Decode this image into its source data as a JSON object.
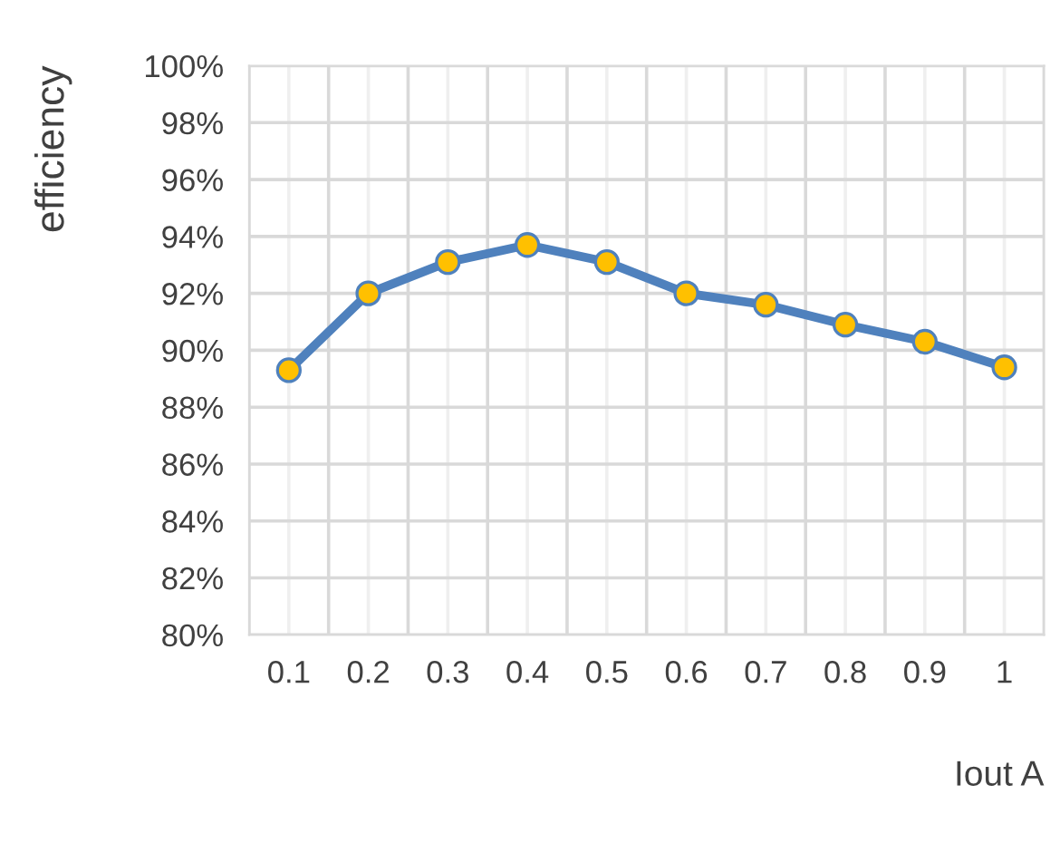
{
  "chart_data": {
    "type": "line",
    "xlabel": "Iout A",
    "ylabel": "efficiency",
    "categories": [
      "0.1",
      "0.2",
      "0.3",
      "0.4",
      "0.5",
      "0.6",
      "0.7",
      "0.8",
      "0.9",
      "1"
    ],
    "series": [
      {
        "color": "#4f81bd",
        "values": [
          89.3,
          92.0,
          93.1,
          93.7,
          93.1,
          92.0,
          91.6,
          90.9,
          90.3,
          89.4
        ]
      }
    ],
    "marker": "circle",
    "ylim": [
      80,
      100
    ],
    "yticks": [
      {
        "value": 80,
        "label": "80%"
      },
      {
        "value": 82,
        "label": "82%"
      },
      {
        "value": 84,
        "label": "84%"
      },
      {
        "value": 86,
        "label": "86%"
      },
      {
        "value": 88,
        "label": "88%"
      },
      {
        "value": 90,
        "label": "90%"
      },
      {
        "value": 92,
        "label": "92%"
      },
      {
        "value": 94,
        "label": "94%"
      },
      {
        "value": 96,
        "label": "96%"
      },
      {
        "value": 98,
        "label": "98%"
      },
      {
        "value": 100,
        "label": "100%"
      }
    ],
    "grid": true
  }
}
